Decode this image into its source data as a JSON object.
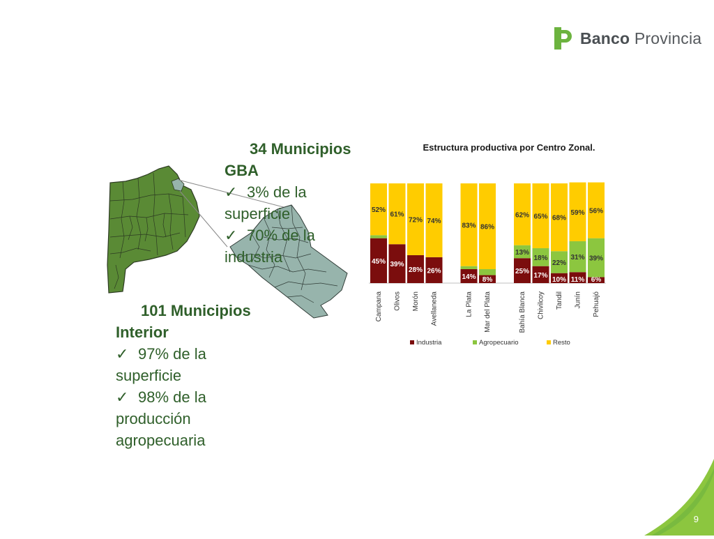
{
  "logo": {
    "brand": "Banco",
    "name": "Provincia",
    "color": "#6cb33f"
  },
  "gba": {
    "title_line1": "34 Municipios",
    "title_line2": "GBA",
    "bullets": [
      {
        "line1": "3% de la",
        "line2": "superficie"
      },
      {
        "line1": "70% de la",
        "line2": "industria"
      }
    ]
  },
  "interior": {
    "title_line1": "101 Municipios",
    "title_line2": "Interior",
    "bullets": [
      {
        "line1": "97% de la",
        "line2": "superficie"
      },
      {
        "line1": "98% de la",
        "line2": "producción",
        "line3": "agropecuaria"
      }
    ]
  },
  "map": {
    "colors": {
      "interior": "#5a8a35",
      "gba": "#97b4ac",
      "border": "#2c3a22"
    }
  },
  "chart_data": {
    "type": "bar",
    "stacked": true,
    "title": "Estructura productiva por Centro Zonal.",
    "categories": [
      "Campana",
      "Olivos",
      "Morón",
      "Avellaneda",
      "La Plata",
      "Mar del Plata",
      "Bahía Blanca",
      "Chivilcoy",
      "Tandil",
      "Junín",
      "Pehuajó"
    ],
    "groups": [
      [
        0,
        1,
        2,
        3
      ],
      [
        4,
        5
      ],
      [
        6,
        7,
        8,
        9,
        10
      ]
    ],
    "series": [
      {
        "name": "Industria",
        "color": "#7b0d0d",
        "values": [
          45,
          39,
          28,
          26,
          14,
          8,
          25,
          17,
          10,
          11,
          6
        ],
        "labels": [
          "45%",
          "39%",
          "28%",
          "26%",
          "14%",
          "8%",
          "25%",
          "17%",
          "10%",
          "11%",
          "6%"
        ]
      },
      {
        "name": "Agropecuario",
        "color": "#8cc63f",
        "values": [
          3,
          0,
          0,
          0,
          3,
          6,
          13,
          18,
          22,
          31,
          39
        ],
        "labels": [
          "",
          "",
          "",
          "",
          "",
          "",
          "13%",
          "18%",
          "22%",
          "31%",
          "39%"
        ]
      },
      {
        "name": "Resto",
        "color": "#ffcc00",
        "values": [
          52,
          61,
          72,
          74,
          83,
          86,
          62,
          65,
          68,
          59,
          56
        ],
        "labels": [
          "52%",
          "61%",
          "72%",
          "74%",
          "83%",
          "86%",
          "62%",
          "65%",
          "68%",
          "59%",
          "56%"
        ]
      }
    ],
    "ylim": [
      0,
      100
    ],
    "legend_position": "bottom"
  },
  "page_number": "9",
  "accent": "#8cc63f"
}
